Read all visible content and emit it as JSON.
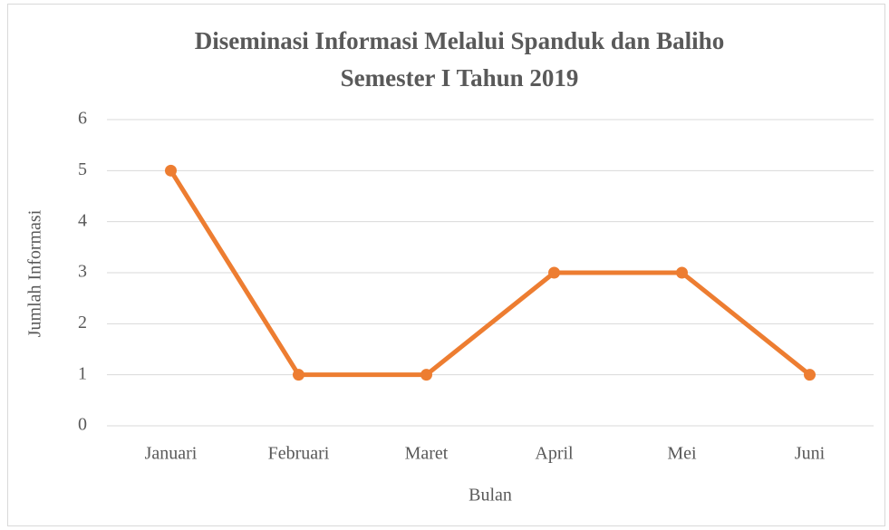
{
  "chart_data": {
    "type": "line",
    "title": "Diseminasi Informasi Melalui Spanduk dan Baliho",
    "subtitle": "Semester I Tahun 2019",
    "x_label": "Bulan",
    "y_label": "Jumlah Informasi",
    "categories": [
      "Januari",
      "Februari",
      "Maret",
      "April",
      "Mei",
      "Juni"
    ],
    "values": [
      5,
      1,
      1,
      3,
      3,
      1
    ],
    "color": "#ed7d31",
    "ylim": [
      0,
      6
    ],
    "yticks": [
      0,
      1,
      2,
      3,
      4,
      5,
      6
    ],
    "grid": true
  }
}
